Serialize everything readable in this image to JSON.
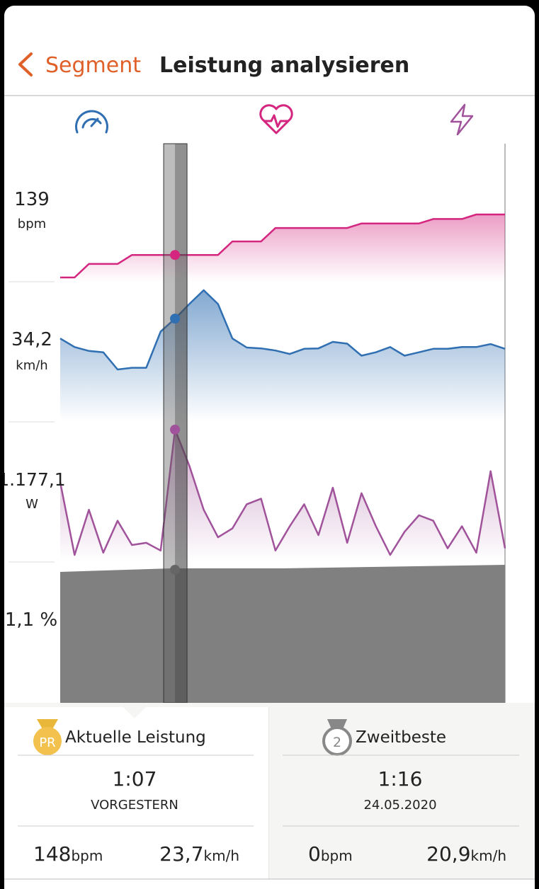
{
  "header": {
    "back": "Segment",
    "title": "Leistung analysieren"
  },
  "chart": {
    "panels": [
      {
        "name": "heart-rate",
        "value": "139",
        "unit": "bpm",
        "color": "#d4267f",
        "values": [
          134,
          134,
          137,
          137,
          137,
          139,
          139,
          139,
          139,
          139,
          139,
          139,
          142,
          142,
          142,
          145,
          145,
          145,
          145,
          145,
          145,
          146,
          146,
          146,
          146,
          146,
          147,
          147,
          147,
          148,
          148,
          148
        ]
      },
      {
        "name": "speed",
        "value": "34,2",
        "unit": "km/h",
        "color": "#2f6fb2",
        "values": [
          29.6,
          27.6,
          26.7,
          26.4,
          22.4,
          22.8,
          22.8,
          31.2,
          34.2,
          37.6,
          40.8,
          37.6,
          29.6,
          27.5,
          27.3,
          26.8,
          26.0,
          27.2,
          27.3,
          28.8,
          28.4,
          25.6,
          26.4,
          27.6,
          25.6,
          26.4,
          27.2,
          27.2,
          27.6,
          27.6,
          28.3,
          27.2
        ]
      },
      {
        "name": "power",
        "value": "1.177,1",
        "unit": "W",
        "color": "#a0529a",
        "values": [
          700,
          40,
          450,
          60,
          350,
          130,
          150,
          80,
          1177.1,
          850,
          450,
          200,
          280,
          500,
          550,
          80,
          300,
          500,
          220,
          650,
          150,
          600,
          300,
          40,
          250,
          400,
          350,
          100,
          300,
          60,
          800,
          100
        ]
      },
      {
        "name": "grade",
        "value": "1,1 %",
        "color": "#808080",
        "values": [
          1.0,
          1.1,
          1.1,
          1.15,
          1.2
        ]
      }
    ]
  },
  "comparison": [
    {
      "badge": "PR",
      "title": "Aktuelle Leistung",
      "time": "1:07",
      "date": "VORGESTERN",
      "stats": [
        {
          "value": "148",
          "unit": "bpm"
        },
        {
          "value": "23,7",
          "unit": "km/h"
        }
      ]
    },
    {
      "badge": "2",
      "title": "Zweitbeste",
      "time": "1:16",
      "date": "24.05.2020",
      "stats": [
        {
          "value": "0",
          "unit": "bpm"
        },
        {
          "value": "20,9",
          "unit": "km/h"
        }
      ]
    }
  ]
}
